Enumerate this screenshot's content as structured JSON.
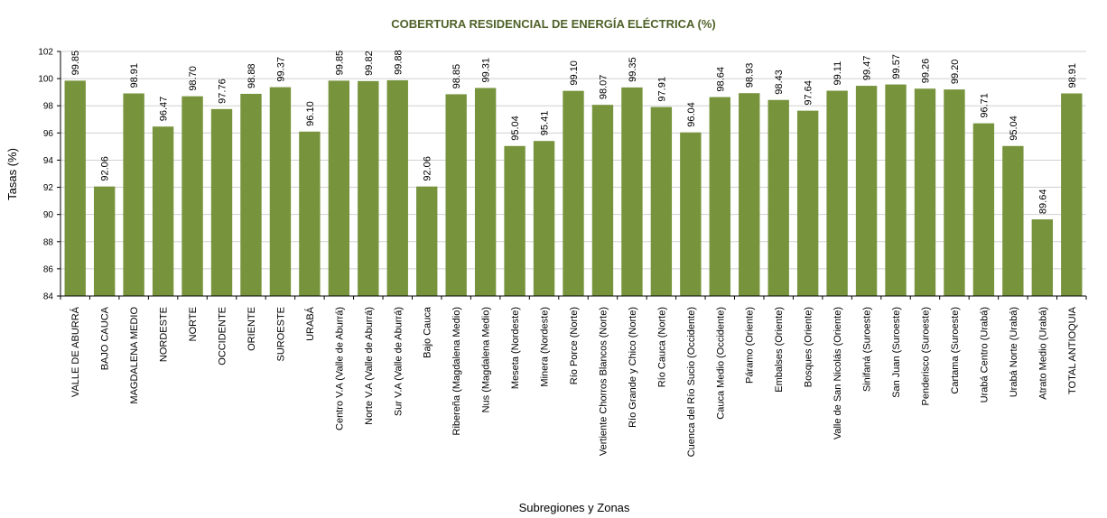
{
  "chart_data": {
    "type": "bar",
    "title": "COBERTURA RESIDENCIAL DE ENERGÍA ELÉCTRICA (%)",
    "xlabel": "Subregiones y Zonas",
    "ylabel": "Tasas (%)",
    "ylim": [
      84,
      102
    ],
    "yticks": [
      84,
      86,
      88,
      90,
      92,
      94,
      96,
      98,
      100,
      102
    ],
    "grid": true,
    "legend": "none",
    "bar_color": "#77933c",
    "title_color": "#4f6228",
    "categories": [
      "VALLE DE ABURRÁ",
      "BAJO CAUCA",
      "MAGDALENA MEDIO",
      "NORDESTE",
      "NORTE",
      "OCCIDENTE",
      "ORIENTE",
      "SUROESTE",
      "URABÁ",
      "Centro V.A (Valle de Aburrá)",
      "Norte V.A (Valle de Aburrá)",
      "Sur V.A (Valle de Aburrá)",
      "Bajo Cauca",
      "Ribereña  (Magdalena Medio)",
      "Nus  (Magdalena Medio)",
      "Meseta  (Nordeste)",
      "Minera  (Nordeste)",
      "Río Porce   (Norte)",
      "Vertiente Chorros Blancos  (Norte)",
      "Río Grande y Chico  (Norte)",
      "Río Cauca  (Norte)",
      "Cuenca del Río Sucio  (Occidente)",
      "Cauca Medio  (Occidente)",
      "Páramo  (Oriente)",
      "Embalses  (Oriente)",
      "Bosques  (Oriente)",
      "Valle de San Nicolás  (Oriente)",
      "Sinifaná  (Suroeste)",
      "San Juan  (Suroeste)",
      "Penderisco  (Suroeste)",
      "Cartama  (Suroeste)",
      "Urabá Centro  (Urabá)",
      "Urabá Norte  (Urabá)",
      "Atrato Medio  (Urabá)",
      "TOTAL ANTIOQUIA"
    ],
    "values": [
      99.85,
      92.06,
      98.91,
      96.47,
      98.7,
      97.76,
      98.88,
      99.37,
      96.1,
      99.85,
      99.82,
      99.88,
      92.06,
      98.85,
      99.31,
      95.04,
      95.41,
      99.1,
      98.07,
      99.35,
      97.91,
      96.04,
      98.64,
      98.93,
      98.43,
      97.64,
      99.11,
      99.47,
      99.57,
      99.26,
      99.2,
      96.71,
      95.04,
      89.64,
      98.91
    ],
    "value_labels": [
      "99.85",
      "92.06",
      "98.91",
      "96.47",
      "98.70",
      "97.76",
      "98.88",
      "99.37",
      "96.10",
      "99.85",
      "99.82",
      "99.88",
      "92.06",
      "98.85",
      "99.31",
      "95.04",
      "95.41",
      "99.10",
      "98.07",
      "99.35",
      "97.91",
      "96.04",
      "98.64",
      "98.93",
      "98.43",
      "97.64",
      "99.11",
      "99.47",
      "99.57",
      "99.26",
      "99.20",
      "96.71",
      "95.04",
      "89.64",
      "98.91"
    ]
  }
}
